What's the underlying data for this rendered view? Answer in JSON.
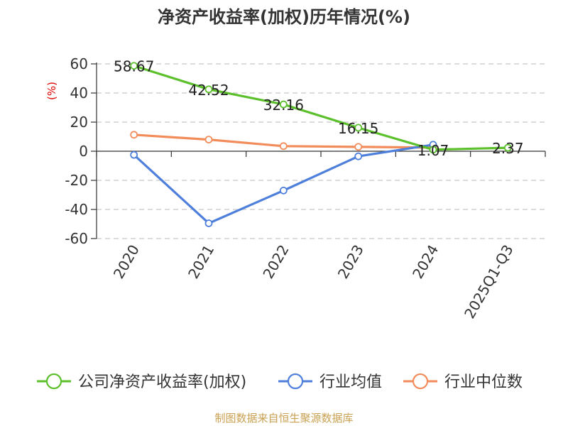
{
  "chart_data": {
    "type": "line",
    "title": "净资产收益率(加权)历年情况(%)",
    "ylabel": "(%)",
    "xlabel": "",
    "categories": [
      "2020",
      "2021",
      "2022",
      "2023",
      "2024",
      "2025Q1-Q3"
    ],
    "ylim": [
      -60,
      60
    ],
    "yticks": [
      60,
      40,
      20,
      0,
      -20,
      -40,
      -60
    ],
    "grid": "horizontal dashed",
    "legend_position": "bottom",
    "series": [
      {
        "name": "公司净资产收益率(加权)",
        "color": "#5cc02c",
        "values": [
          58.67,
          42.52,
          32.16,
          16.15,
          1.07,
          2.37
        ],
        "data_labels": [
          "58.67",
          "42.52",
          "32.16",
          "16.15",
          "1.07",
          "2.37"
        ]
      },
      {
        "name": "行业均值",
        "color": "#4d7fdb",
        "values": [
          -2.5,
          -49.5,
          -27.0,
          -3.5,
          4.5,
          null
        ]
      },
      {
        "name": "行业中位数",
        "color": "#f28c5a",
        "values": [
          11.3,
          8.0,
          3.5,
          3.0,
          2.5,
          null
        ]
      }
    ]
  },
  "source": "制图数据来自恒生聚源数据库"
}
